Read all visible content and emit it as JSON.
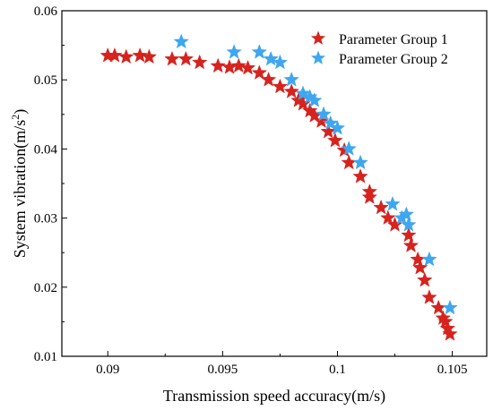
{
  "chart_data": {
    "type": "scatter",
    "xlabel": "Transmission speed accuracy(m/s)",
    "ylabel_main": "System vibration(m/s",
    "ylabel_sup": "2",
    "ylabel_close": ")",
    "xlim": [
      0.088,
      0.1065
    ],
    "ylim": [
      0.01,
      0.06
    ],
    "x_ticks": [
      0.09,
      0.095,
      0.1,
      0.105
    ],
    "x_tick_labels": [
      "0.09",
      "0.095",
      "0.1",
      "0.105"
    ],
    "y_ticks": [
      0.01,
      0.02,
      0.03,
      0.04,
      0.05,
      0.06
    ],
    "y_tick_labels": [
      "0.01",
      "0.02",
      "0.03",
      "0.04",
      "0.05",
      "0.06"
    ],
    "grid": false,
    "legend_position": "top-right",
    "series": [
      {
        "name": "Parameter Group 1",
        "color": "#d6231e",
        "x": [
          0.09,
          0.0903,
          0.0908,
          0.0914,
          0.0918,
          0.0928,
          0.0934,
          0.094,
          0.0948,
          0.0953,
          0.0957,
          0.0961,
          0.0966,
          0.097,
          0.0975,
          0.098,
          0.0983,
          0.0985,
          0.0988,
          0.099,
          0.0993,
          0.0996,
          0.0999,
          0.1003,
          0.1005,
          0.101,
          0.1014,
          0.1014,
          0.1019,
          0.1022,
          0.1025,
          0.1031,
          0.1032,
          0.1035,
          0.1036,
          0.1038,
          0.104,
          0.1044,
          0.1046,
          0.1047,
          0.1048,
          0.1049
        ],
        "y": [
          0.0535,
          0.0535,
          0.0533,
          0.0535,
          0.0533,
          0.053,
          0.053,
          0.0525,
          0.052,
          0.0518,
          0.052,
          0.0517,
          0.051,
          0.05,
          0.049,
          0.0483,
          0.047,
          0.0465,
          0.0455,
          0.0448,
          0.044,
          0.0425,
          0.0412,
          0.0398,
          0.038,
          0.036,
          0.0338,
          0.033,
          0.0315,
          0.03,
          0.029,
          0.0275,
          0.026,
          0.024,
          0.0228,
          0.021,
          0.0185,
          0.017,
          0.0155,
          0.015,
          0.014,
          0.0132
        ]
      },
      {
        "name": "Parameter Group 2",
        "color": "#3ea7ef",
        "x": [
          0.0932,
          0.0955,
          0.0966,
          0.0971,
          0.0975,
          0.098,
          0.0985,
          0.0988,
          0.099,
          0.0994,
          0.0997,
          0.1,
          0.1005,
          0.101,
          0.1024,
          0.1028,
          0.103,
          0.1031,
          0.104,
          0.1049
        ],
        "y": [
          0.0555,
          0.054,
          0.054,
          0.053,
          0.0525,
          0.05,
          0.048,
          0.0475,
          0.047,
          0.045,
          0.0437,
          0.043,
          0.04,
          0.038,
          0.032,
          0.03,
          0.0305,
          0.029,
          0.024,
          0.017
        ]
      }
    ]
  }
}
